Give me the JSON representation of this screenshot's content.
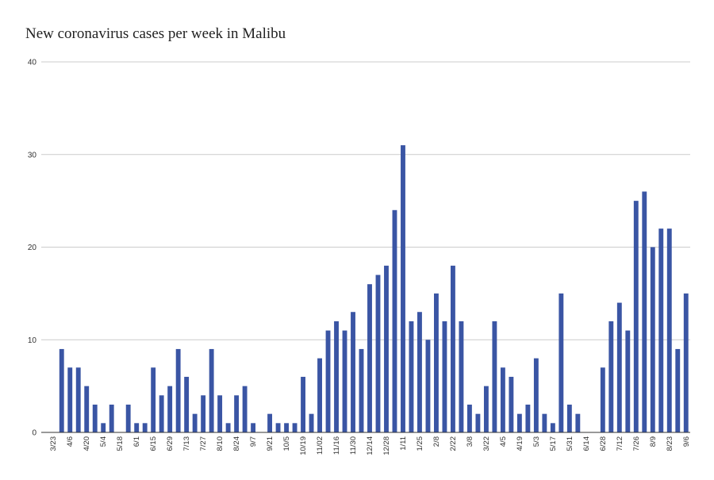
{
  "chart_data": {
    "type": "bar",
    "title": "New coronavirus cases per week in Malibu",
    "xlabel": "",
    "ylabel": "",
    "ylim": [
      0,
      40
    ],
    "yticks": [
      0,
      10,
      20,
      30,
      40
    ],
    "grid": true,
    "bar_color": "#3a55a4",
    "grid_color": "#cccccc",
    "axis_color": "#333333",
    "categories": [
      "3/23",
      "3/30",
      "4/6",
      "4/13",
      "4/20",
      "4/27",
      "5/4",
      "5/11",
      "5/18",
      "5/25",
      "6/1",
      "6/8",
      "6/15",
      "6/22",
      "6/29",
      "7/6",
      "7/13",
      "7/20",
      "7/27",
      "8/3",
      "8/10",
      "8/17",
      "8/24",
      "8/31",
      "9/7",
      "9/14",
      "9/21",
      "9/28",
      "10/5",
      "10/12",
      "10/19",
      "10/26",
      "11/02",
      "11/9",
      "11/16",
      "11/23",
      "11/30",
      "12/7",
      "12/14",
      "12/21",
      "12/28",
      "1/4",
      "1/11",
      "1/18",
      "1/25",
      "2/1",
      "2/8",
      "2/15",
      "2/22",
      "3/1",
      "3/8",
      "3/15",
      "3/22",
      "3/29",
      "4/5",
      "4/12",
      "4/19",
      "4/26",
      "5/3",
      "5/10",
      "5/17",
      "5/24",
      "5/31",
      "6/7",
      "6/14",
      "6/21",
      "6/28",
      "7/5",
      "7/12",
      "7/19",
      "7/26",
      "8/2",
      "8/9",
      "8/16",
      "8/23",
      "8/30",
      "9/6"
    ],
    "values": [
      0,
      9,
      7,
      7,
      5,
      3,
      1,
      3,
      0,
      3,
      1,
      1,
      7,
      4,
      5,
      9,
      6,
      2,
      4,
      9,
      4,
      1,
      4,
      5,
      1,
      0,
      2,
      1,
      1,
      1,
      6,
      2,
      8,
      11,
      12,
      11,
      13,
      9,
      16,
      17,
      18,
      24,
      31,
      12,
      13,
      10,
      15,
      12,
      18,
      12,
      3,
      2,
      5,
      12,
      7,
      6,
      2,
      3,
      8,
      2,
      1,
      15,
      3,
      2,
      0,
      0,
      7,
      12,
      14,
      11,
      25,
      26,
      20,
      22,
      22,
      9,
      15
    ],
    "visible_tick_labels": [
      "3/23",
      "4/6",
      "4/20",
      "5/4",
      "5/18",
      "6/1",
      "6/15",
      "6/29",
      "7/13",
      "7/27",
      "8/10",
      "8/24",
      "9/7",
      "9/21",
      "10/5",
      "10/19",
      "11/02",
      "11/16",
      "11/30",
      "12/14",
      "12/28",
      "1/11",
      "1/25",
      "2/8",
      "2/22",
      "3/8",
      "3/22",
      "4/5",
      "4/19",
      "5/3",
      "5/17",
      "5/31",
      "6/14",
      "6/28",
      "7/12",
      "7/26",
      "8/9",
      "8/23",
      "9/6"
    ]
  }
}
